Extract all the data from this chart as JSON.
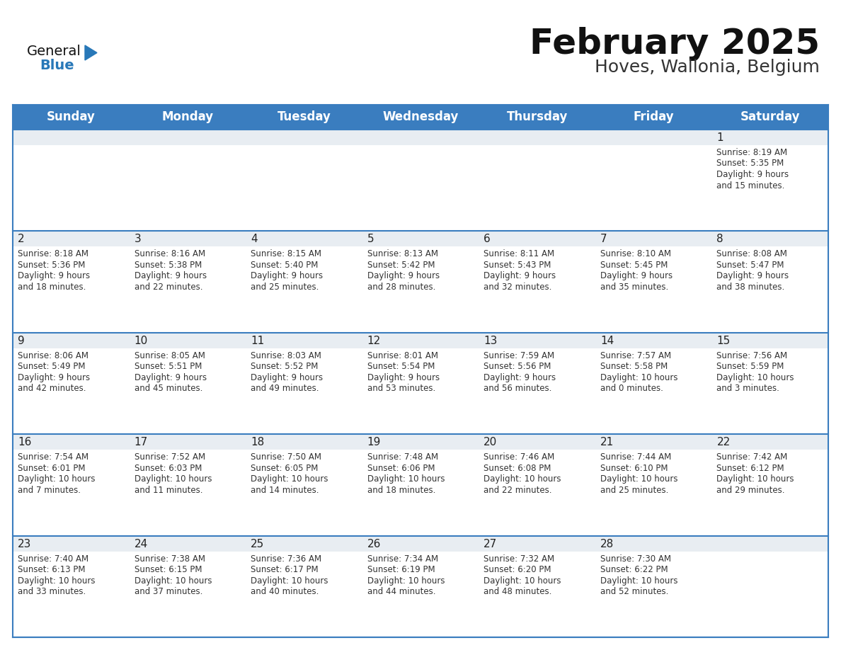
{
  "title": "February 2025",
  "subtitle": "Hoves, Wallonia, Belgium",
  "days_of_week": [
    "Sunday",
    "Monday",
    "Tuesday",
    "Wednesday",
    "Thursday",
    "Friday",
    "Saturday"
  ],
  "header_bg": "#3a7dbf",
  "header_text": "#ffffff",
  "cell_bg_top": "#e8edf2",
  "cell_bg_main": "#ffffff",
  "row_sep_color": "#3a7dbf",
  "outer_border_color": "#3a7dbf",
  "text_color": "#333333",
  "day_number_color": "#222222",
  "title_color": "#111111",
  "subtitle_color": "#333333",
  "logo_general_color": "#111111",
  "logo_blue_color": "#2878b8",
  "calendar_data": [
    [
      null,
      null,
      null,
      null,
      null,
      null,
      {
        "day": 1,
        "sunrise": "8:19 AM",
        "sunset": "5:35 PM",
        "daylight": "9 hours and 15 minutes."
      }
    ],
    [
      {
        "day": 2,
        "sunrise": "8:18 AM",
        "sunset": "5:36 PM",
        "daylight": "9 hours and 18 minutes."
      },
      {
        "day": 3,
        "sunrise": "8:16 AM",
        "sunset": "5:38 PM",
        "daylight": "9 hours and 22 minutes."
      },
      {
        "day": 4,
        "sunrise": "8:15 AM",
        "sunset": "5:40 PM",
        "daylight": "9 hours and 25 minutes."
      },
      {
        "day": 5,
        "sunrise": "8:13 AM",
        "sunset": "5:42 PM",
        "daylight": "9 hours and 28 minutes."
      },
      {
        "day": 6,
        "sunrise": "8:11 AM",
        "sunset": "5:43 PM",
        "daylight": "9 hours and 32 minutes."
      },
      {
        "day": 7,
        "sunrise": "8:10 AM",
        "sunset": "5:45 PM",
        "daylight": "9 hours and 35 minutes."
      },
      {
        "day": 8,
        "sunrise": "8:08 AM",
        "sunset": "5:47 PM",
        "daylight": "9 hours and 38 minutes."
      }
    ],
    [
      {
        "day": 9,
        "sunrise": "8:06 AM",
        "sunset": "5:49 PM",
        "daylight": "9 hours and 42 minutes."
      },
      {
        "day": 10,
        "sunrise": "8:05 AM",
        "sunset": "5:51 PM",
        "daylight": "9 hours and 45 minutes."
      },
      {
        "day": 11,
        "sunrise": "8:03 AM",
        "sunset": "5:52 PM",
        "daylight": "9 hours and 49 minutes."
      },
      {
        "day": 12,
        "sunrise": "8:01 AM",
        "sunset": "5:54 PM",
        "daylight": "9 hours and 53 minutes."
      },
      {
        "day": 13,
        "sunrise": "7:59 AM",
        "sunset": "5:56 PM",
        "daylight": "9 hours and 56 minutes."
      },
      {
        "day": 14,
        "sunrise": "7:57 AM",
        "sunset": "5:58 PM",
        "daylight": "10 hours and 0 minutes."
      },
      {
        "day": 15,
        "sunrise": "7:56 AM",
        "sunset": "5:59 PM",
        "daylight": "10 hours and 3 minutes."
      }
    ],
    [
      {
        "day": 16,
        "sunrise": "7:54 AM",
        "sunset": "6:01 PM",
        "daylight": "10 hours and 7 minutes."
      },
      {
        "day": 17,
        "sunrise": "7:52 AM",
        "sunset": "6:03 PM",
        "daylight": "10 hours and 11 minutes."
      },
      {
        "day": 18,
        "sunrise": "7:50 AM",
        "sunset": "6:05 PM",
        "daylight": "10 hours and 14 minutes."
      },
      {
        "day": 19,
        "sunrise": "7:48 AM",
        "sunset": "6:06 PM",
        "daylight": "10 hours and 18 minutes."
      },
      {
        "day": 20,
        "sunrise": "7:46 AM",
        "sunset": "6:08 PM",
        "daylight": "10 hours and 22 minutes."
      },
      {
        "day": 21,
        "sunrise": "7:44 AM",
        "sunset": "6:10 PM",
        "daylight": "10 hours and 25 minutes."
      },
      {
        "day": 22,
        "sunrise": "7:42 AM",
        "sunset": "6:12 PM",
        "daylight": "10 hours and 29 minutes."
      }
    ],
    [
      {
        "day": 23,
        "sunrise": "7:40 AM",
        "sunset": "6:13 PM",
        "daylight": "10 hours and 33 minutes."
      },
      {
        "day": 24,
        "sunrise": "7:38 AM",
        "sunset": "6:15 PM",
        "daylight": "10 hours and 37 minutes."
      },
      {
        "day": 25,
        "sunrise": "7:36 AM",
        "sunset": "6:17 PM",
        "daylight": "10 hours and 40 minutes."
      },
      {
        "day": 26,
        "sunrise": "7:34 AM",
        "sunset": "6:19 PM",
        "daylight": "10 hours and 44 minutes."
      },
      {
        "day": 27,
        "sunrise": "7:32 AM",
        "sunset": "6:20 PM",
        "daylight": "10 hours and 48 minutes."
      },
      {
        "day": 28,
        "sunrise": "7:30 AM",
        "sunset": "6:22 PM",
        "daylight": "10 hours and 52 minutes."
      },
      null
    ]
  ],
  "figsize": [
    11.88,
    9.18
  ],
  "dpi": 100
}
